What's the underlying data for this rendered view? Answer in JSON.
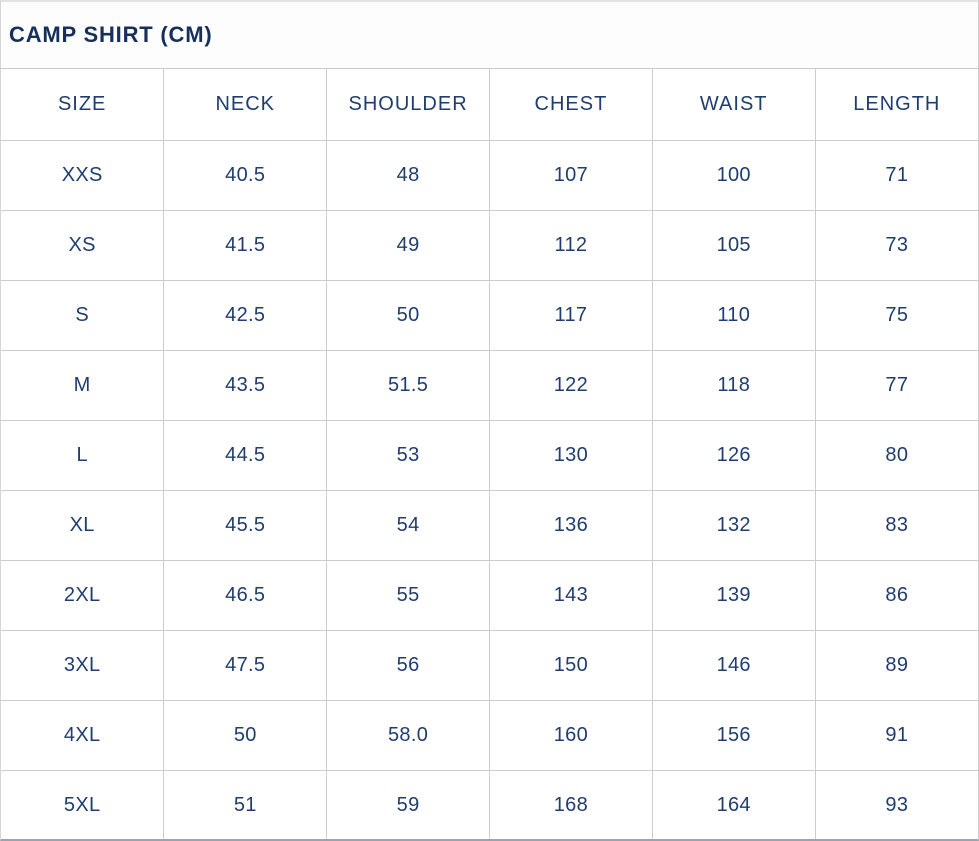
{
  "title": "CAMP SHIRT (CM)",
  "colors": {
    "title_text": "#16305e",
    "cell_text": "#1f3d6e",
    "grid_border": "#cccccc",
    "background": "#ffffff"
  },
  "table": {
    "columns": [
      "SIZE",
      "NECK",
      "SHOULDER",
      "CHEST",
      "WAIST",
      "LENGTH"
    ],
    "rows": [
      [
        "XXS",
        "40.5",
        "48",
        "107",
        "100",
        "71"
      ],
      [
        "XS",
        "41.5",
        "49",
        "112",
        "105",
        "73"
      ],
      [
        "S",
        "42.5",
        "50",
        "117",
        "110",
        "75"
      ],
      [
        "M",
        "43.5",
        "51.5",
        "122",
        "118",
        "77"
      ],
      [
        "L",
        "44.5",
        "53",
        "130",
        "126",
        "80"
      ],
      [
        "XL",
        "45.5",
        "54",
        "136",
        "132",
        "83"
      ],
      [
        "2XL",
        "46.5",
        "55",
        "143",
        "139",
        "86"
      ],
      [
        "3XL",
        "47.5",
        "56",
        "150",
        "146",
        "89"
      ],
      [
        "4XL",
        "50",
        "58.0",
        "160",
        "156",
        "91"
      ],
      [
        "5XL",
        "51",
        "59",
        "168",
        "164",
        "93"
      ]
    ]
  },
  "chart_data": {
    "type": "table",
    "title": "CAMP SHIRT (CM)",
    "unit": "cm",
    "columns": [
      "SIZE",
      "NECK",
      "SHOULDER",
      "CHEST",
      "WAIST",
      "LENGTH"
    ],
    "rows": [
      {
        "size": "XXS",
        "neck": 40.5,
        "shoulder": 48,
        "chest": 107,
        "waist": 100,
        "length": 71
      },
      {
        "size": "XS",
        "neck": 41.5,
        "shoulder": 49,
        "chest": 112,
        "waist": 105,
        "length": 73
      },
      {
        "size": "S",
        "neck": 42.5,
        "shoulder": 50,
        "chest": 117,
        "waist": 110,
        "length": 75
      },
      {
        "size": "M",
        "neck": 43.5,
        "shoulder": 51.5,
        "chest": 122,
        "waist": 118,
        "length": 77
      },
      {
        "size": "L",
        "neck": 44.5,
        "shoulder": 53,
        "chest": 130,
        "waist": 126,
        "length": 80
      },
      {
        "size": "XL",
        "neck": 45.5,
        "shoulder": 54,
        "chest": 136,
        "waist": 132,
        "length": 83
      },
      {
        "size": "2XL",
        "neck": 46.5,
        "shoulder": 55,
        "chest": 143,
        "waist": 139,
        "length": 86
      },
      {
        "size": "3XL",
        "neck": 47.5,
        "shoulder": 56,
        "chest": 150,
        "waist": 146,
        "length": 89
      },
      {
        "size": "4XL",
        "neck": 50,
        "shoulder": 58.0,
        "chest": 160,
        "waist": 156,
        "length": 91
      },
      {
        "size": "5XL",
        "neck": 51,
        "shoulder": 59,
        "chest": 168,
        "waist": 164,
        "length": 93
      }
    ]
  }
}
